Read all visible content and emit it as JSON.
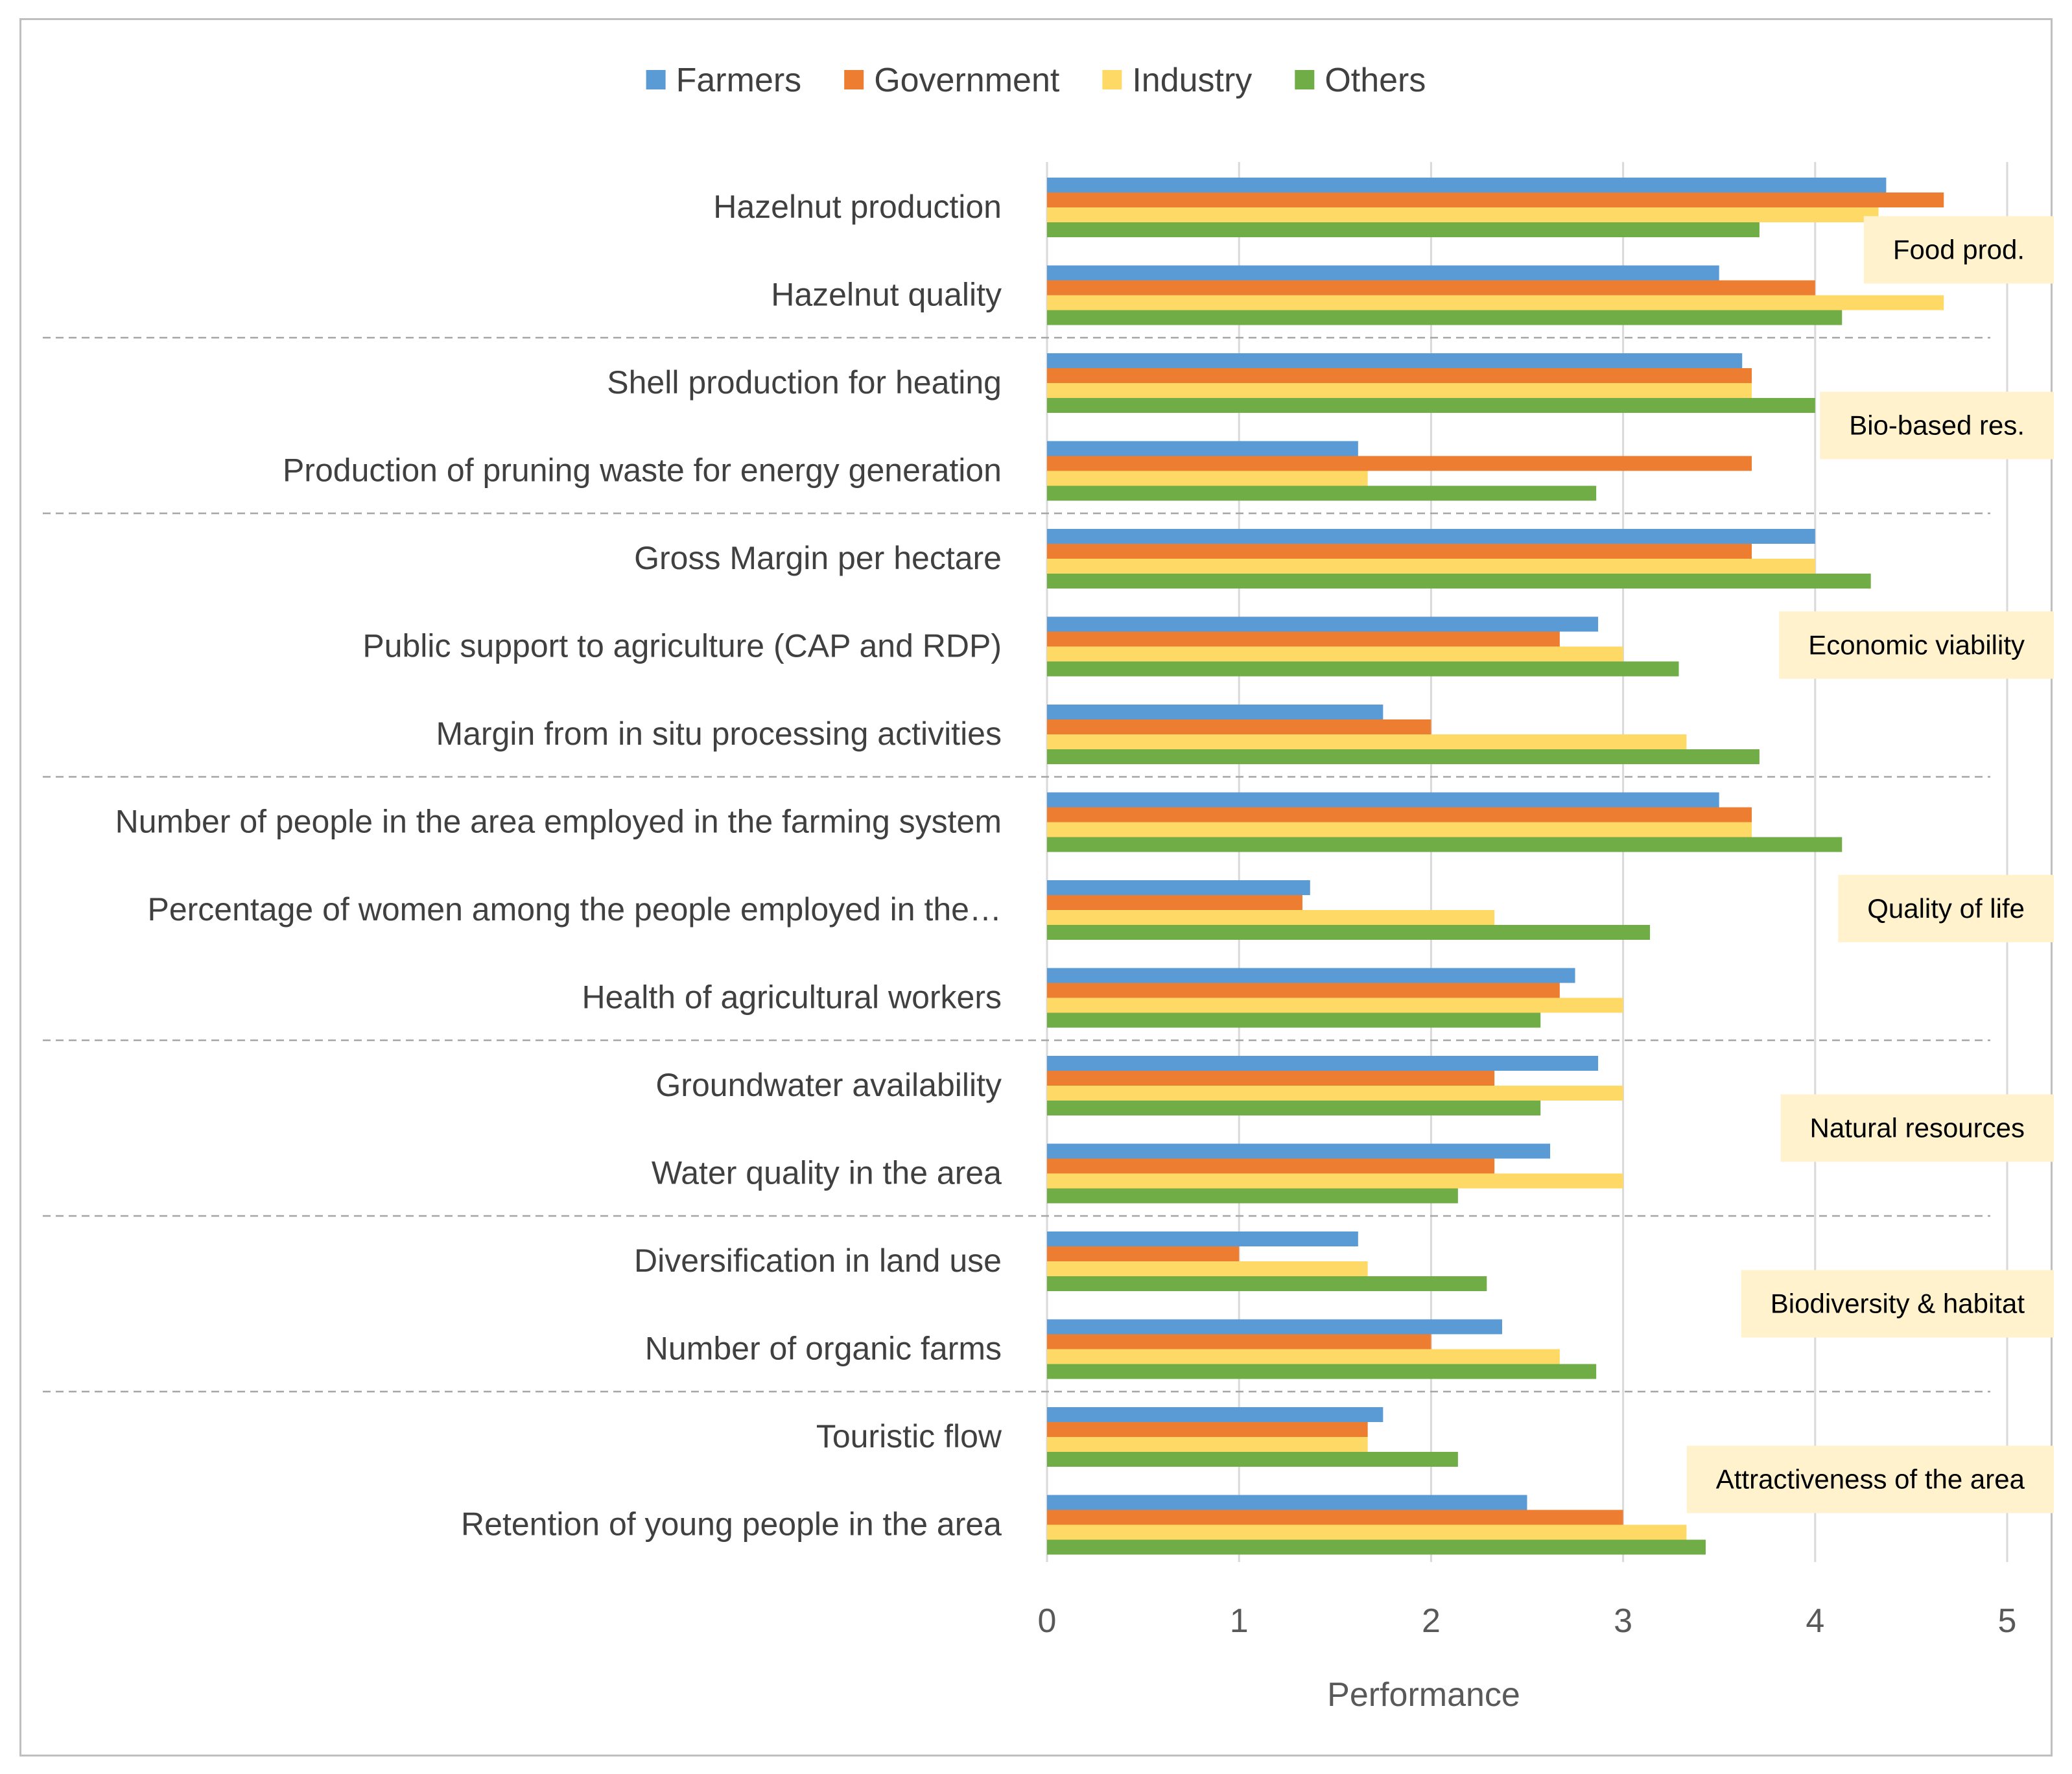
{
  "chart_data": {
    "type": "bar",
    "orientation": "horizontal",
    "xlabel": "Performance",
    "xlim": [
      0,
      5
    ],
    "xticks": [
      "0",
      "1",
      "2",
      "3",
      "4",
      "5"
    ],
    "grid": true,
    "legend_position": "top-center",
    "categories": [
      "Hazelnut production",
      "Hazelnut quality",
      "Shell production for heating",
      "Production of pruning waste for energy generation",
      "Gross Margin per hectare",
      "Public support to agriculture (CAP and RDP)",
      "Margin from in situ processing activities",
      "Number of people in the area employed in the farming system",
      "Percentage of women among the people employed in the…",
      "Health of agricultural workers",
      "Groundwater availability",
      "Water quality in the area",
      "Diversification in land use",
      "Number of organic farms",
      "Touristic flow",
      "Retention of young people in the area"
    ],
    "series": [
      {
        "name": "Farmers",
        "color": "#5b9bd5",
        "values": [
          4.37,
          3.5,
          3.62,
          1.62,
          4.0,
          2.87,
          1.75,
          3.5,
          1.37,
          2.75,
          2.87,
          2.62,
          1.62,
          2.37,
          1.75,
          2.5
        ]
      },
      {
        "name": "Government",
        "color": "#ed7d31",
        "values": [
          4.67,
          4.0,
          3.67,
          3.67,
          3.67,
          2.67,
          2.0,
          3.67,
          1.33,
          2.67,
          2.33,
          2.33,
          1.0,
          2.0,
          1.67,
          3.0
        ]
      },
      {
        "name": "Industry",
        "color": "#ffd966",
        "values": [
          4.33,
          4.67,
          3.67,
          1.67,
          4.0,
          3.0,
          3.33,
          3.67,
          2.33,
          3.0,
          3.0,
          3.0,
          1.67,
          2.67,
          1.67,
          3.33
        ]
      },
      {
        "name": "Others",
        "color": "#70ad47",
        "values": [
          3.71,
          4.14,
          4.0,
          2.86,
          4.29,
          3.29,
          3.71,
          4.14,
          3.14,
          2.57,
          2.57,
          2.14,
          2.29,
          2.86,
          2.14,
          3.43
        ]
      }
    ],
    "groups": [
      {
        "label": "Food prod.",
        "first": 0,
        "last": 1
      },
      {
        "label": "Bio-based res.",
        "first": 2,
        "last": 3
      },
      {
        "label": "Economic viability",
        "first": 4,
        "last": 6
      },
      {
        "label": "Quality of life",
        "first": 7,
        "last": 9
      },
      {
        "label": "Natural resources",
        "first": 10,
        "last": 11
      },
      {
        "label": "Biodiversity & habitat",
        "first": 12,
        "last": 13
      },
      {
        "label": "Attractiveness of the area",
        "first": 14,
        "last": 15
      }
    ],
    "colors": {
      "grid": "#d9d9d9",
      "separator": "#a6a6a6",
      "group_box": "#fff2cc",
      "text": "#404040",
      "axis_text": "#595959"
    }
  }
}
